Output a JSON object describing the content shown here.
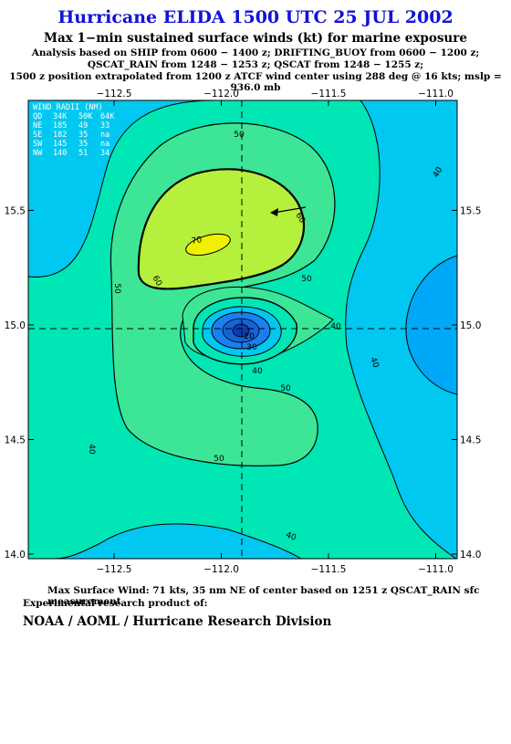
{
  "header": {
    "title": "Hurricane ELIDA 1500 UTC 25 JUL 2002",
    "subtitle": "Max 1−min sustained surface winds (kt) for marine exposure",
    "line1": "Analysis based on  SHIP from 0600 − 1400 z;  DRIFTING_BUOY from 0600 − 1200 z;",
    "line2": "QSCAT_RAIN from 1248 − 1253 z;  QSCAT from 1248 − 1255 z;",
    "line3": "1500 z position extrapolated from 1200 z ATCF wind center using 288 deg @ 16 kts; mslp = 936.0 mb"
  },
  "footer": {
    "max_wind": "Max Surface Wind: 71 kts, 35 nm NE of center based on 1251 z QSCAT_RAIN sfc measurement",
    "experimental": "Experimental research product of:",
    "org": "NOAA / AOML / Hurricane Research Division"
  },
  "map": {
    "lon_range": [
      -112.9,
      -110.9
    ],
    "lat_range": [
      13.98,
      15.98
    ],
    "lon_ticks": [
      "−112.5",
      "−112.0",
      "−111.5",
      "−111.0"
    ],
    "lat_ticks": [
      "14.0",
      "14.5",
      "15.0",
      "15.5"
    ],
    "lon_tick_values": [
      -112.5,
      -112.0,
      -111.5,
      -111.0
    ],
    "lat_tick_values": [
      14.0,
      14.5,
      15.0,
      15.5
    ],
    "center": {
      "lon": -111.9,
      "lat": 14.95
    },
    "contour_labels": [
      "50",
      "40",
      "60",
      "70",
      "60",
      "50",
      "50",
      "40",
      "30",
      "20",
      "40",
      "50",
      "40",
      "50",
      "40",
      "40"
    ],
    "colors": {
      "lt30": "#1a7ff0",
      "30_40": "#00c8f0",
      "40_50": "#00e6b4",
      "50_60": "#3ce696",
      "60_70": "#b4f03c",
      "gt70": "#f0f000",
      "low": "#00a8f8",
      "title": "#1212d8"
    }
  },
  "wind_radii": {
    "title": "WIND RADII (NM)",
    "header": [
      "QD",
      "34K",
      "50K",
      "64K"
    ],
    "rows": [
      [
        "NE",
        "185",
        "49",
        "33"
      ],
      [
        "SE",
        "182",
        "35",
        "na"
      ],
      [
        "SW",
        "145",
        "35",
        "na"
      ],
      [
        "NW",
        "140",
        "51",
        "34"
      ]
    ]
  }
}
